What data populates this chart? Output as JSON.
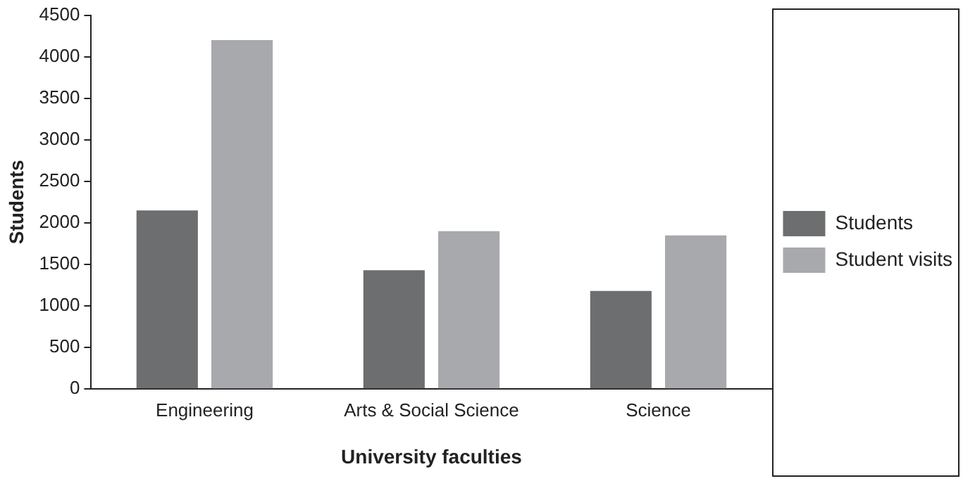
{
  "chart_data": {
    "type": "bar",
    "xlabel": "University faculties",
    "ylabel": "Students",
    "categories": [
      "Engineering",
      "Arts & Social Science",
      "Science"
    ],
    "series": [
      {
        "name": "Students",
        "color": "#6d6e70",
        "values": [
          2150,
          1430,
          1180
        ]
      },
      {
        "name": "Student visits",
        "color": "#a7a9ac",
        "values": [
          4200,
          1900,
          1850
        ]
      }
    ],
    "ylim": [
      0,
      4500
    ],
    "yticks": [
      0,
      500,
      1000,
      1500,
      2000,
      2500,
      3000,
      3500,
      4000,
      4500
    ],
    "grid": false,
    "legend": "right"
  }
}
